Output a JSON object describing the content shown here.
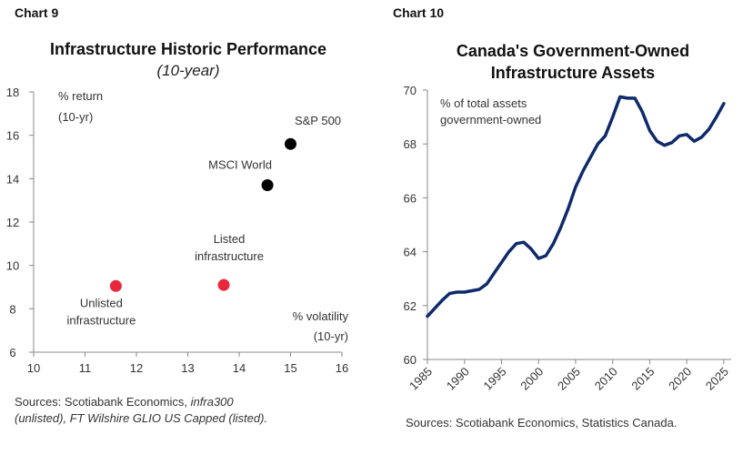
{
  "chart_data": [
    {
      "type": "scatter",
      "chart_label": "Chart 9",
      "title": "Infrastructure Historic Performance",
      "subtitle": "(10-year)",
      "xlabel": "% volatility (10-yr)",
      "ylabel": "% return (10-yr)",
      "xlim": [
        10,
        16
      ],
      "ylim": [
        6,
        18
      ],
      "xticks": [
        "10",
        "11",
        "12",
        "13",
        "14",
        "15",
        "16"
      ],
      "yticks": [
        "6",
        "8",
        "10",
        "12",
        "14",
        "16",
        "18"
      ],
      "points": [
        {
          "label": "S&P 500",
          "x": 15.0,
          "y": 15.6,
          "color": "#000000"
        },
        {
          "label": "MSCI World",
          "x": 14.55,
          "y": 13.7,
          "color": "#000000"
        },
        {
          "label": "Listed infrastructure",
          "x": 13.7,
          "y": 9.1,
          "color": "#e8273a"
        },
        {
          "label": "Unlisted infrastructure",
          "x": 11.6,
          "y": 9.05,
          "color": "#e8273a"
        }
      ],
      "source": "Sources: Scotiabank Economics, infra300 (unlisted), FT Wilshire GLIO US Capped (listed)."
    },
    {
      "type": "line",
      "chart_label": "Chart 10",
      "title": "Canada's Government-Owned Infrastructure Assets",
      "annotation": "% of total assets government-owned",
      "xlim": [
        1985,
        2026
      ],
      "ylim": [
        60,
        70
      ],
      "xticks": [
        "1985",
        "1990",
        "1995",
        "2000",
        "2005",
        "2010",
        "2015",
        "2020",
        "2025"
      ],
      "yticks": [
        "60",
        "62",
        "64",
        "66",
        "68",
        "70"
      ],
      "series": [
        {
          "color": "#0f2a6b",
          "x": [
            1985,
            1986,
            1987,
            1988,
            1989,
            1990,
            1991,
            1992,
            1993,
            1994,
            1995,
            1996,
            1997,
            1998,
            1999,
            2000,
            2001,
            2002,
            2003,
            2004,
            2005,
            2006,
            2007,
            2008,
            2009,
            2010,
            2011,
            2012,
            2013,
            2014,
            2015,
            2016,
            2017,
            2018,
            2019,
            2020,
            2021,
            2022,
            2023,
            2024,
            2025
          ],
          "y": [
            61.6,
            61.9,
            62.2,
            62.45,
            62.5,
            62.5,
            62.55,
            62.6,
            62.8,
            63.2,
            63.6,
            64.0,
            64.3,
            64.35,
            64.1,
            63.75,
            63.85,
            64.3,
            64.9,
            65.6,
            66.4,
            67.0,
            67.5,
            68.0,
            68.3,
            69.0,
            69.75,
            69.7,
            69.7,
            69.2,
            68.5,
            68.1,
            67.95,
            68.05,
            68.3,
            68.35,
            68.1,
            68.25,
            68.55,
            69.0,
            69.5
          ]
        }
      ],
      "source": "Sources: Scotiabank Economics, Statistics Canada."
    }
  ]
}
